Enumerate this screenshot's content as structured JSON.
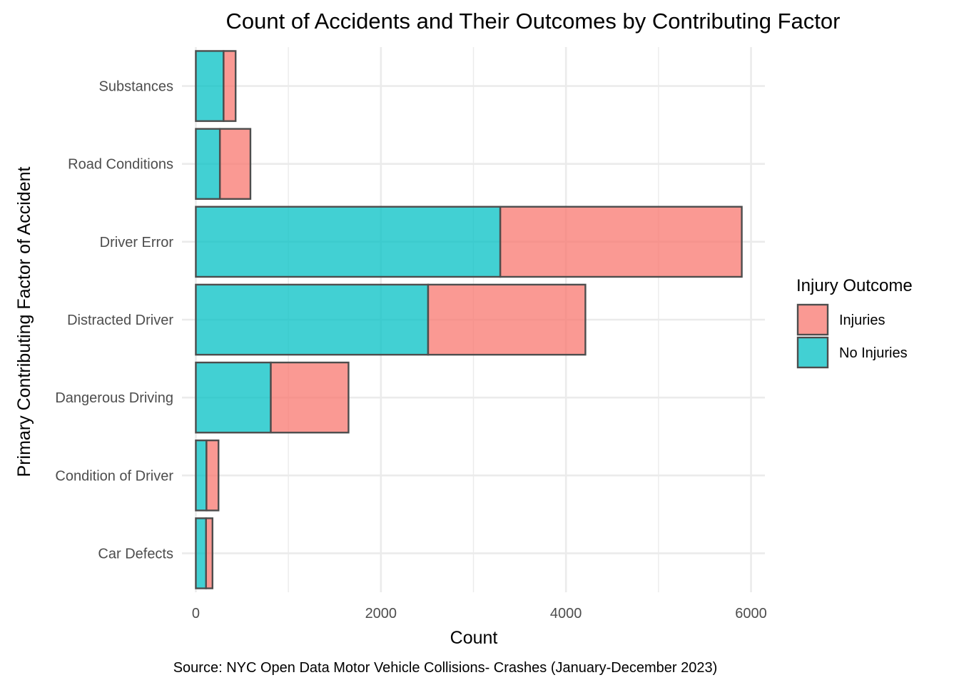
{
  "chart_data": {
    "type": "bar",
    "orientation": "horizontal",
    "stacked": true,
    "title": "Count of Accidents and Their Outcomes by Contributing Factor",
    "xlabel": "Count",
    "ylabel": "Primary Contributing Factor of Accident",
    "caption": "Source: NYC Open Data Motor Vehicle Collisions- Crashes (January-December 2023)",
    "categories": [
      "Car Defects",
      "Condition of Driver",
      "Dangerous Driving",
      "Distracted Driver",
      "Driver Error",
      "Road Conditions",
      "Substances"
    ],
    "series": [
      {
        "name": "No Injuries",
        "color": "#00BFC4",
        "values": [
          110,
          115,
          810,
          2510,
          3290,
          260,
          300
        ]
      },
      {
        "name": "Injuries",
        "color": "#F8766D",
        "values": [
          70,
          130,
          840,
          1700,
          2610,
          330,
          130
        ]
      }
    ],
    "xticks": [
      0,
      2000,
      4000,
      6000
    ],
    "xtick_labels": [
      "0",
      "2000",
      "4000",
      "6000"
    ],
    "xlim": [
      -150,
      6150
    ],
    "grid": true,
    "legend": {
      "title": "Injury Outcome",
      "position": "right",
      "items": [
        {
          "label": "Injuries",
          "color": "#F8766D"
        },
        {
          "label": "No Injuries",
          "color": "#00BFC4"
        }
      ]
    }
  }
}
